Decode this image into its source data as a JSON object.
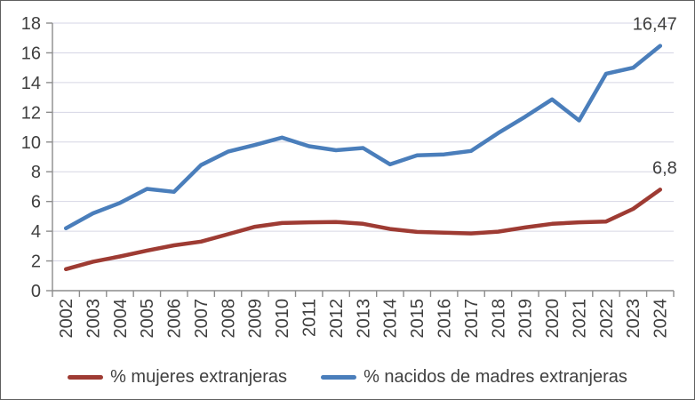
{
  "chart_data": {
    "type": "line",
    "title": "",
    "categories": [
      "2002",
      "2003",
      "2004",
      "2005",
      "2006",
      "2007",
      "2008",
      "2009",
      "2010",
      "2011",
      "2012",
      "2013",
      "2014",
      "2015",
      "2016",
      "2017",
      "2018",
      "2019",
      "2020",
      "2021",
      "2022",
      "2023",
      "2024"
    ],
    "series": [
      {
        "name": "% mujeres extranjeras",
        "color": "#9e3b33",
        "values": [
          1.45,
          1.95,
          2.3,
          2.7,
          3.05,
          3.3,
          3.8,
          4.3,
          4.55,
          4.6,
          4.62,
          4.5,
          4.15,
          3.95,
          3.9,
          3.85,
          3.97,
          4.25,
          4.5,
          4.6,
          4.65,
          5.5,
          6.8
        ],
        "end_label": "6,8"
      },
      {
        "name": "% nacidos de madres extranjeras",
        "color": "#4a7ebb",
        "values": [
          4.2,
          5.2,
          5.9,
          6.85,
          6.65,
          8.45,
          9.35,
          9.8,
          10.3,
          9.72,
          9.45,
          9.6,
          8.5,
          9.1,
          9.17,
          9.4,
          10.6,
          11.7,
          12.87,
          11.45,
          14.6,
          15.0,
          16.47
        ],
        "end_label": "16,47"
      }
    ],
    "y_axis": {
      "min": 0,
      "max": 18,
      "step": 2,
      "tick_labels": [
        "0",
        "2",
        "4",
        "6",
        "8",
        "10",
        "12",
        "14",
        "16",
        "18"
      ]
    },
    "x_axis": {
      "label_rotation_deg": -90
    },
    "grid": true,
    "legend_position": "bottom",
    "colors": {
      "gridline": "#d6d6e4",
      "axis": "#8c8c8c",
      "tick_text": "#3f3f3f",
      "data_label_text": "#3f3f3f"
    }
  }
}
